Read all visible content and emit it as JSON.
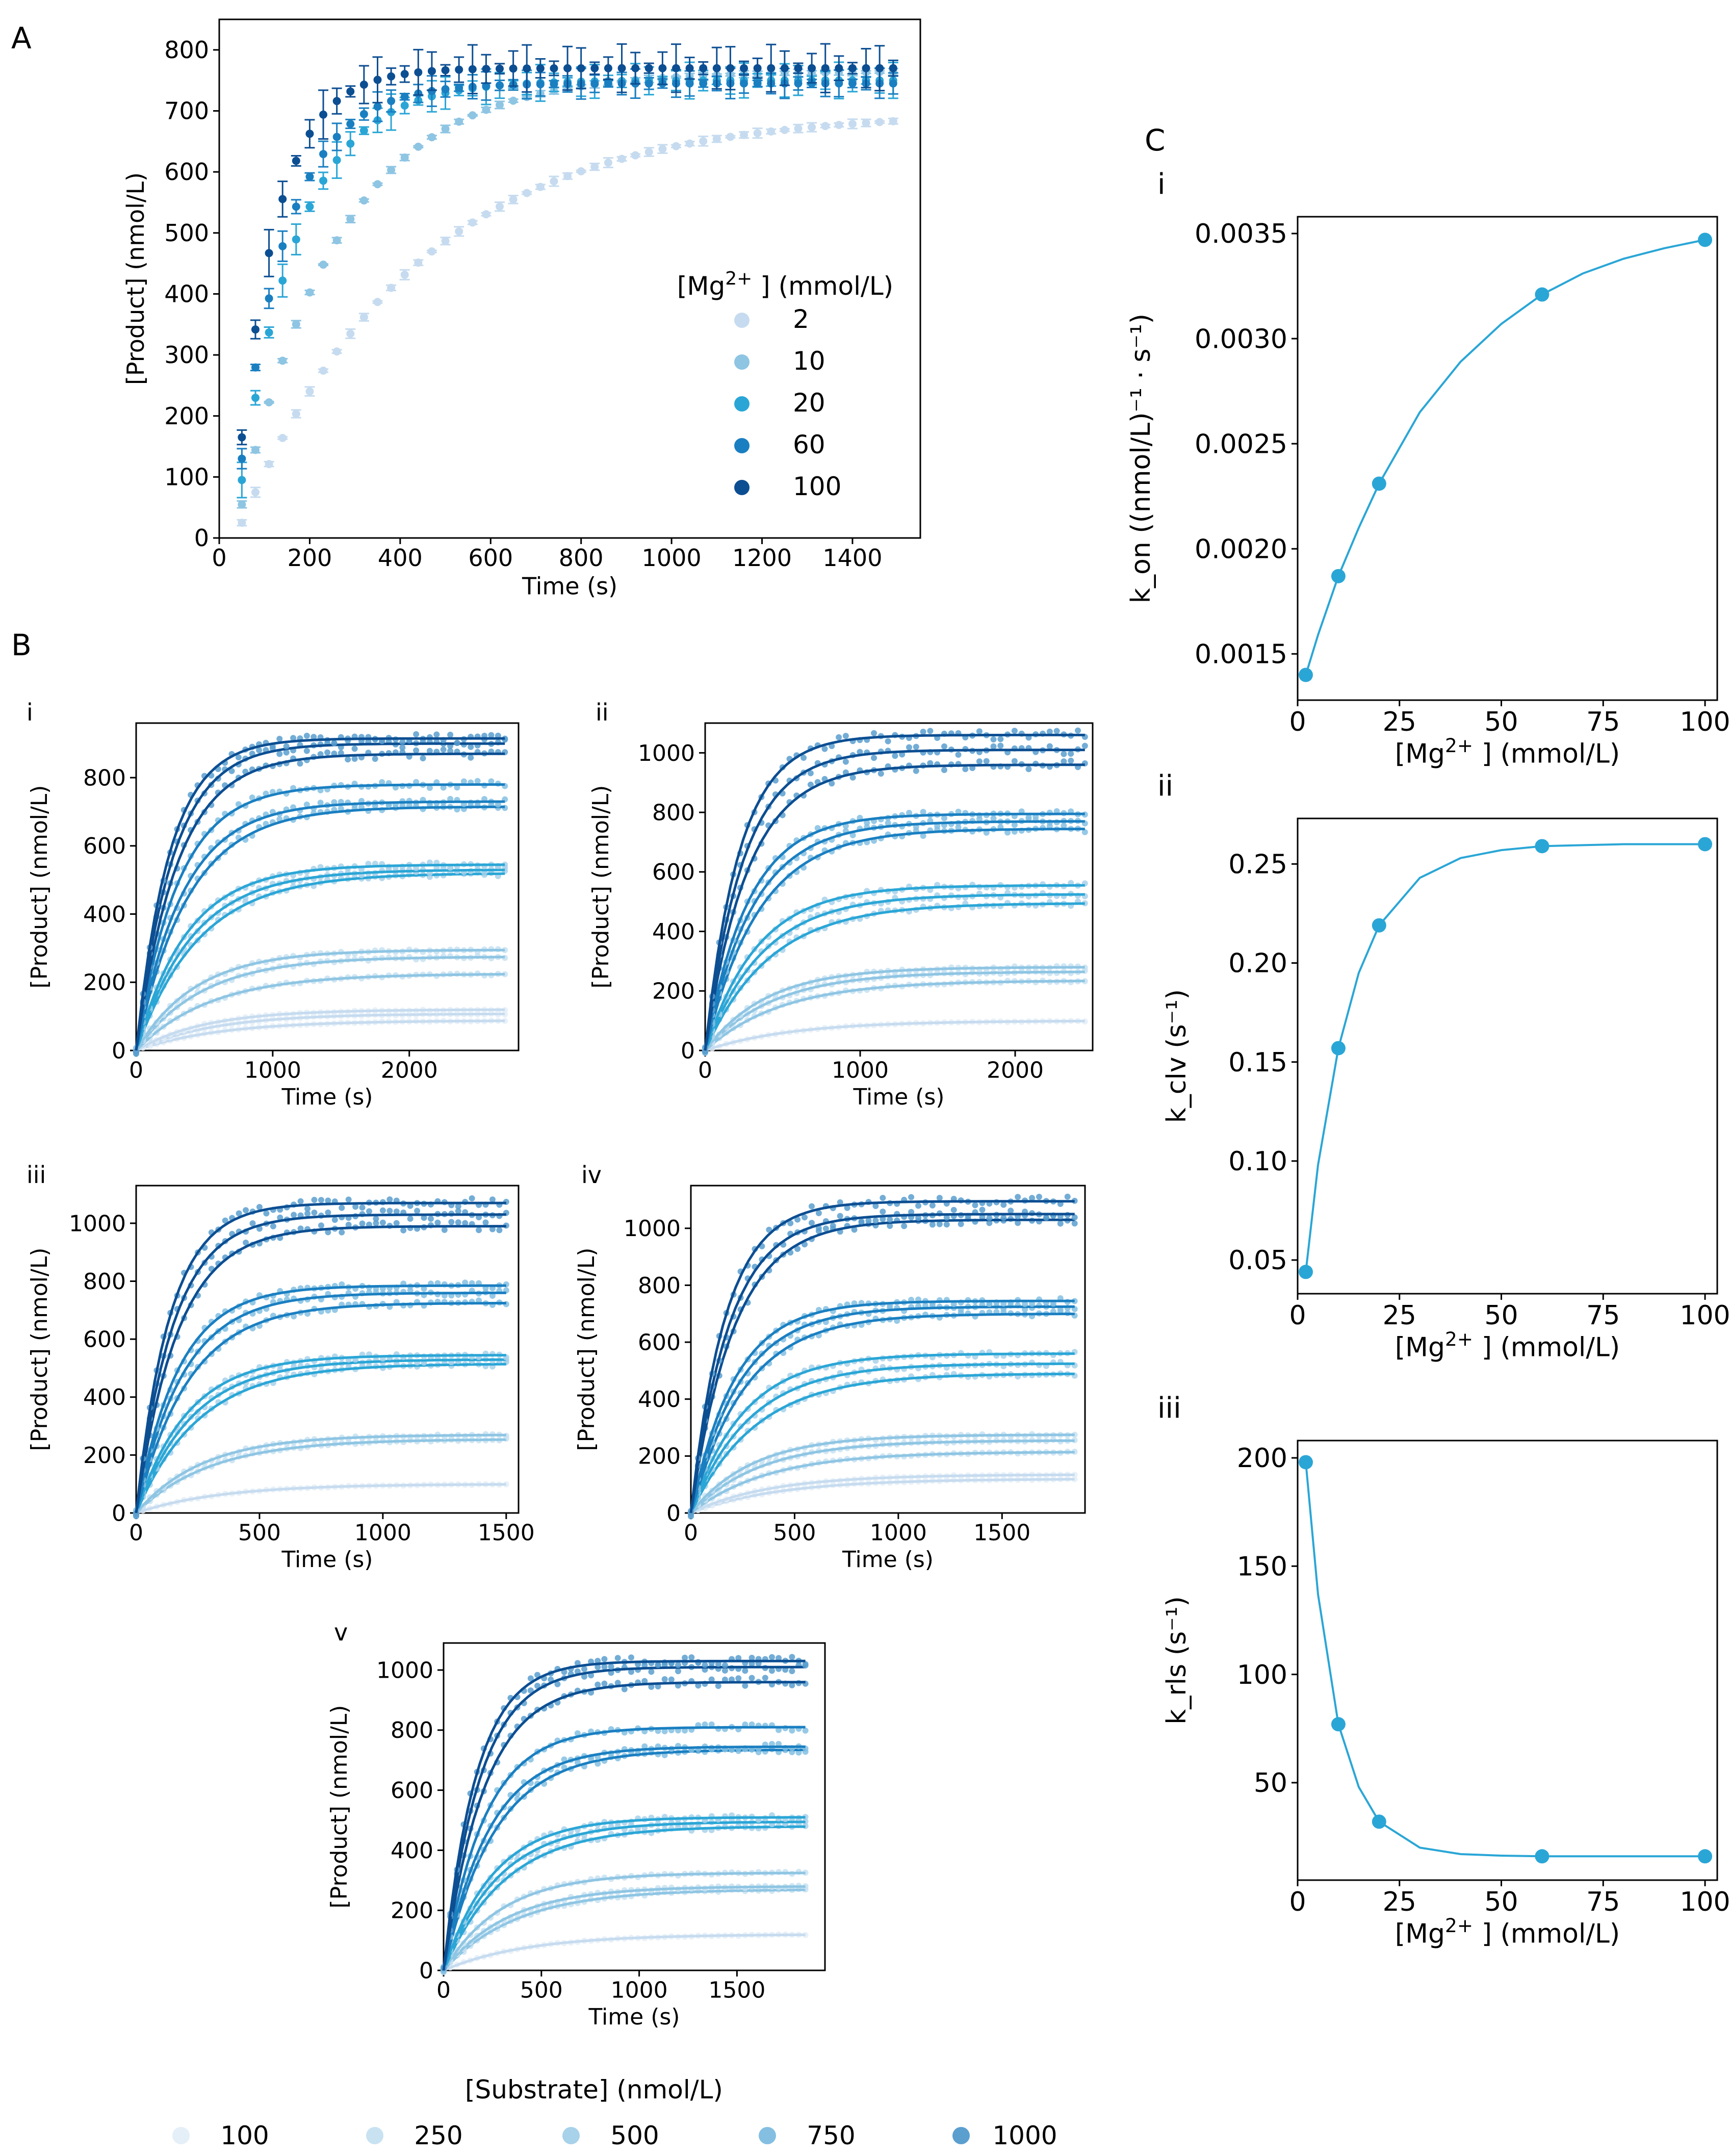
{
  "panel_labels": {
    "A": "A",
    "B": "B",
    "C": "C"
  },
  "colors": {
    "mg": [
      "#c6dbef",
      "#8ec5e3",
      "#2aa6d6",
      "#1a7fc1",
      "#0c4e92"
    ],
    "sub": [
      "#e4eff8",
      "#c8e2f2",
      "#a8d1ea",
      "#84bfe2",
      "#5b9fcf"
    ],
    "fit": "#2aa6d6"
  },
  "legend_mg": {
    "title": "[Mg$^{2+}$] (mmol/L)",
    "title_text": "[Mg",
    "title_sup": "2+",
    "title_rest": "] (mmol/L)",
    "entries": [
      "2",
      "10",
      "20",
      "60",
      "100"
    ]
  },
  "legend_substrate": {
    "title": "[Substrate] (nmol/L)",
    "entries": [
      "100",
      "250",
      "500",
      "750",
      "1000"
    ]
  },
  "axis_text": {
    "time": "Time (s)",
    "product": "[Product] (nmol/L)",
    "mg_x": "[Mg²⁺] (mmol/L)",
    "kon": "k_on ((nmol/L)⁻¹ · s⁻¹)",
    "kclv": "k_clv (s⁻¹)",
    "krls": "k_rls (s⁻¹)"
  },
  "chart_data": [
    {
      "id": "A",
      "type": "scatter",
      "title": "",
      "xlabel": "Time (s)",
      "ylabel": "[Product] (nmol/L)",
      "xlim": [
        0,
        1550
      ],
      "ylim": [
        0,
        850
      ],
      "xticks": [
        0,
        200,
        400,
        600,
        800,
        1000,
        1200,
        1400
      ],
      "yticks": [
        0,
        100,
        200,
        300,
        400,
        500,
        600,
        700,
        800
      ],
      "x_start": 50,
      "x_step": 30,
      "n_points": 49,
      "error_bars": true,
      "series": [
        {
          "name": "2",
          "plateau": 700,
          "rate": 0.0016,
          "offset": 25,
          "err": 8
        },
        {
          "name": "10",
          "plateau": 765,
          "rate": 0.0028,
          "offset": 55,
          "err": 6
        },
        {
          "name": "20",
          "plateau": 750,
          "rate": 0.0048,
          "offset": 95,
          "err": 30
        },
        {
          "name": "60",
          "plateau": 745,
          "rate": 0.0058,
          "offset": 130,
          "err": 25
        },
        {
          "name": "100",
          "plateau": 770,
          "rate": 0.0072,
          "offset": 165,
          "err": 40
        }
      ]
    },
    {
      "id": "B-i",
      "type": "scatter",
      "label": "i",
      "xlabel": "Time (s)",
      "ylabel": "[Product] (nmol/L)",
      "xlim": [
        0,
        2800
      ],
      "ylim": [
        0,
        960
      ],
      "xticks": [
        0,
        1000,
        2000
      ],
      "yticks": [
        0,
        200,
        400,
        600,
        800
      ],
      "t_end": 2700,
      "n_points": 55,
      "series": [
        {
          "name": "100",
          "plateaus": [
            88,
            108,
            120
          ]
        },
        {
          "name": "250",
          "plateaus": [
            225,
            275,
            295
          ]
        },
        {
          "name": "500",
          "plateaus": [
            520,
            530,
            545
          ]
        },
        {
          "name": "750",
          "plateaus": [
            715,
            730,
            780
          ]
        },
        {
          "name": "1000",
          "plateaus": [
            870,
            900,
            915
          ]
        }
      ]
    },
    {
      "id": "B-ii",
      "type": "scatter",
      "label": "ii",
      "xlabel": "Time (s)",
      "ylabel": "[Product] (nmol/L)",
      "xlim": [
        0,
        2500
      ],
      "ylim": [
        0,
        1100
      ],
      "xticks": [
        0,
        1000,
        2000
      ],
      "yticks": [
        0,
        200,
        400,
        600,
        800,
        1000
      ],
      "t_end": 2450,
      "n_points": 55,
      "series": [
        {
          "name": "100",
          "plateaus": [
            100
          ]
        },
        {
          "name": "250",
          "plateaus": [
            235,
            265,
            280
          ]
        },
        {
          "name": "500",
          "plateaus": [
            495,
            525,
            555
          ]
        },
        {
          "name": "750",
          "plateaus": [
            745,
            770,
            795
          ]
        },
        {
          "name": "1000",
          "plateaus": [
            960,
            1010,
            1060
          ]
        }
      ]
    },
    {
      "id": "B-iii",
      "type": "scatter",
      "label": "iii",
      "xlabel": "Time (s)",
      "ylabel": "[Product] (nmol/L)",
      "xlim": [
        0,
        1550
      ],
      "ylim": [
        0,
        1130
      ],
      "xticks": [
        0,
        500,
        1000,
        1500
      ],
      "yticks": [
        0,
        200,
        400,
        600,
        800,
        1000
      ],
      "t_end": 1500,
      "n_points": 55,
      "series": [
        {
          "name": "100",
          "plateaus": [
            100
          ]
        },
        {
          "name": "250",
          "plateaus": [
            255,
            270
          ]
        },
        {
          "name": "500",
          "plateaus": [
            515,
            530,
            545
          ]
        },
        {
          "name": "750",
          "plateaus": [
            725,
            760,
            785
          ]
        },
        {
          "name": "1000",
          "plateaus": [
            990,
            1030,
            1070
          ]
        }
      ]
    },
    {
      "id": "B-iv",
      "type": "scatter",
      "label": "iv",
      "xlabel": "Time (s)",
      "ylabel": "[Product] (nmol/L)",
      "xlim": [
        0,
        1900
      ],
      "ylim": [
        0,
        1150
      ],
      "xticks": [
        0,
        500,
        1000,
        1500
      ],
      "yticks": [
        0,
        200,
        400,
        600,
        800,
        1000
      ],
      "t_end": 1850,
      "n_points": 55,
      "series": [
        {
          "name": "100",
          "plateaus": [
            120,
            135
          ]
        },
        {
          "name": "250",
          "plateaus": [
            215,
            255,
            275
          ]
        },
        {
          "name": "500",
          "plateaus": [
            490,
            525,
            560
          ]
        },
        {
          "name": "750",
          "plateaus": [
            700,
            725,
            745
          ]
        },
        {
          "name": "1000",
          "plateaus": [
            1030,
            1050,
            1095
          ]
        }
      ]
    },
    {
      "id": "B-v",
      "type": "scatter",
      "label": "v",
      "xlabel": "Time (s)",
      "ylabel": "[Product] (nmol/L)",
      "xlim": [
        0,
        1950
      ],
      "ylim": [
        0,
        1090
      ],
      "xticks": [
        0,
        500,
        1000,
        1500
      ],
      "yticks": [
        0,
        200,
        400,
        600,
        800,
        1000
      ],
      "t_end": 1850,
      "n_points": 55,
      "series": [
        {
          "name": "100",
          "plateaus": [
            120
          ]
        },
        {
          "name": "250",
          "plateaus": [
            270,
            280,
            325
          ]
        },
        {
          "name": "500",
          "plateaus": [
            480,
            495,
            510
          ]
        },
        {
          "name": "750",
          "plateaus": [
            735,
            745,
            810
          ]
        },
        {
          "name": "1000",
          "plateaus": [
            960,
            1010,
            1030
          ]
        }
      ]
    },
    {
      "id": "C-i",
      "type": "line",
      "label": "i",
      "xlabel": "[Mg²⁺] (mmol/L)",
      "ylabel": "k_on ((nmol/L)⁻¹ · s⁻¹)",
      "xlim": [
        0,
        103
      ],
      "ylim": [
        0.00128,
        0.00358
      ],
      "xticks": [
        0,
        25,
        50,
        75,
        100
      ],
      "yticks": [
        0.0015,
        0.002,
        0.0025,
        0.003,
        0.0035
      ],
      "ytick_labels": [
        "0.0015",
        "0.0020",
        "0.0025",
        "0.0030",
        "0.0035"
      ],
      "points": {
        "x": [
          2,
          10,
          20,
          60,
          100
        ],
        "y": [
          0.0014,
          0.00187,
          0.00231,
          0.00321,
          0.00347
        ]
      },
      "fit": {
        "x": [
          2,
          5,
          10,
          15,
          20,
          30,
          40,
          50,
          60,
          70,
          80,
          90,
          100
        ],
        "y": [
          0.0014,
          0.00159,
          0.00187,
          0.0021,
          0.00231,
          0.00265,
          0.00289,
          0.00307,
          0.00321,
          0.00331,
          0.00338,
          0.00343,
          0.00347
        ]
      }
    },
    {
      "id": "C-ii",
      "type": "line",
      "label": "ii",
      "xlabel": "[Mg²⁺] (mmol/L)",
      "ylabel": "k_clv (s⁻¹)",
      "xlim": [
        0,
        103
      ],
      "ylim": [
        0.033,
        0.273
      ],
      "xticks": [
        0,
        25,
        50,
        75,
        100
      ],
      "yticks": [
        0.05,
        0.1,
        0.15,
        0.2,
        0.25
      ],
      "ytick_labels": [
        "0.05",
        "0.10",
        "0.15",
        "0.20",
        "0.25"
      ],
      "points": {
        "x": [
          2,
          10,
          20,
          60,
          100
        ],
        "y": [
          0.044,
          0.157,
          0.219,
          0.259,
          0.26
        ]
      },
      "fit": {
        "x": [
          2,
          5,
          10,
          15,
          20,
          30,
          40,
          50,
          60,
          70,
          80,
          90,
          100
        ],
        "y": [
          0.044,
          0.098,
          0.157,
          0.195,
          0.219,
          0.243,
          0.253,
          0.257,
          0.259,
          0.2595,
          0.26,
          0.26,
          0.26
        ]
      }
    },
    {
      "id": "C-iii",
      "type": "line",
      "label": "iii",
      "xlabel": "[Mg²⁺] (mmol/L)",
      "ylabel": "k_rls (s⁻¹)",
      "xlim": [
        0,
        103
      ],
      "ylim": [
        5,
        208
      ],
      "xticks": [
        0,
        25,
        50,
        75,
        100
      ],
      "yticks": [
        50,
        100,
        150,
        200
      ],
      "ytick_labels": [
        "50",
        "100",
        "150",
        "200"
      ],
      "points": {
        "x": [
          2,
          10,
          20,
          60,
          100
        ],
        "y": [
          198,
          77,
          32,
          16,
          16
        ]
      },
      "fit": {
        "x": [
          2,
          5,
          10,
          15,
          20,
          30,
          40,
          50,
          60,
          70,
          80,
          90,
          100
        ],
        "y": [
          198,
          137,
          77,
          48,
          32,
          20,
          17,
          16.3,
          16,
          16,
          16,
          16,
          16
        ]
      }
    }
  ]
}
